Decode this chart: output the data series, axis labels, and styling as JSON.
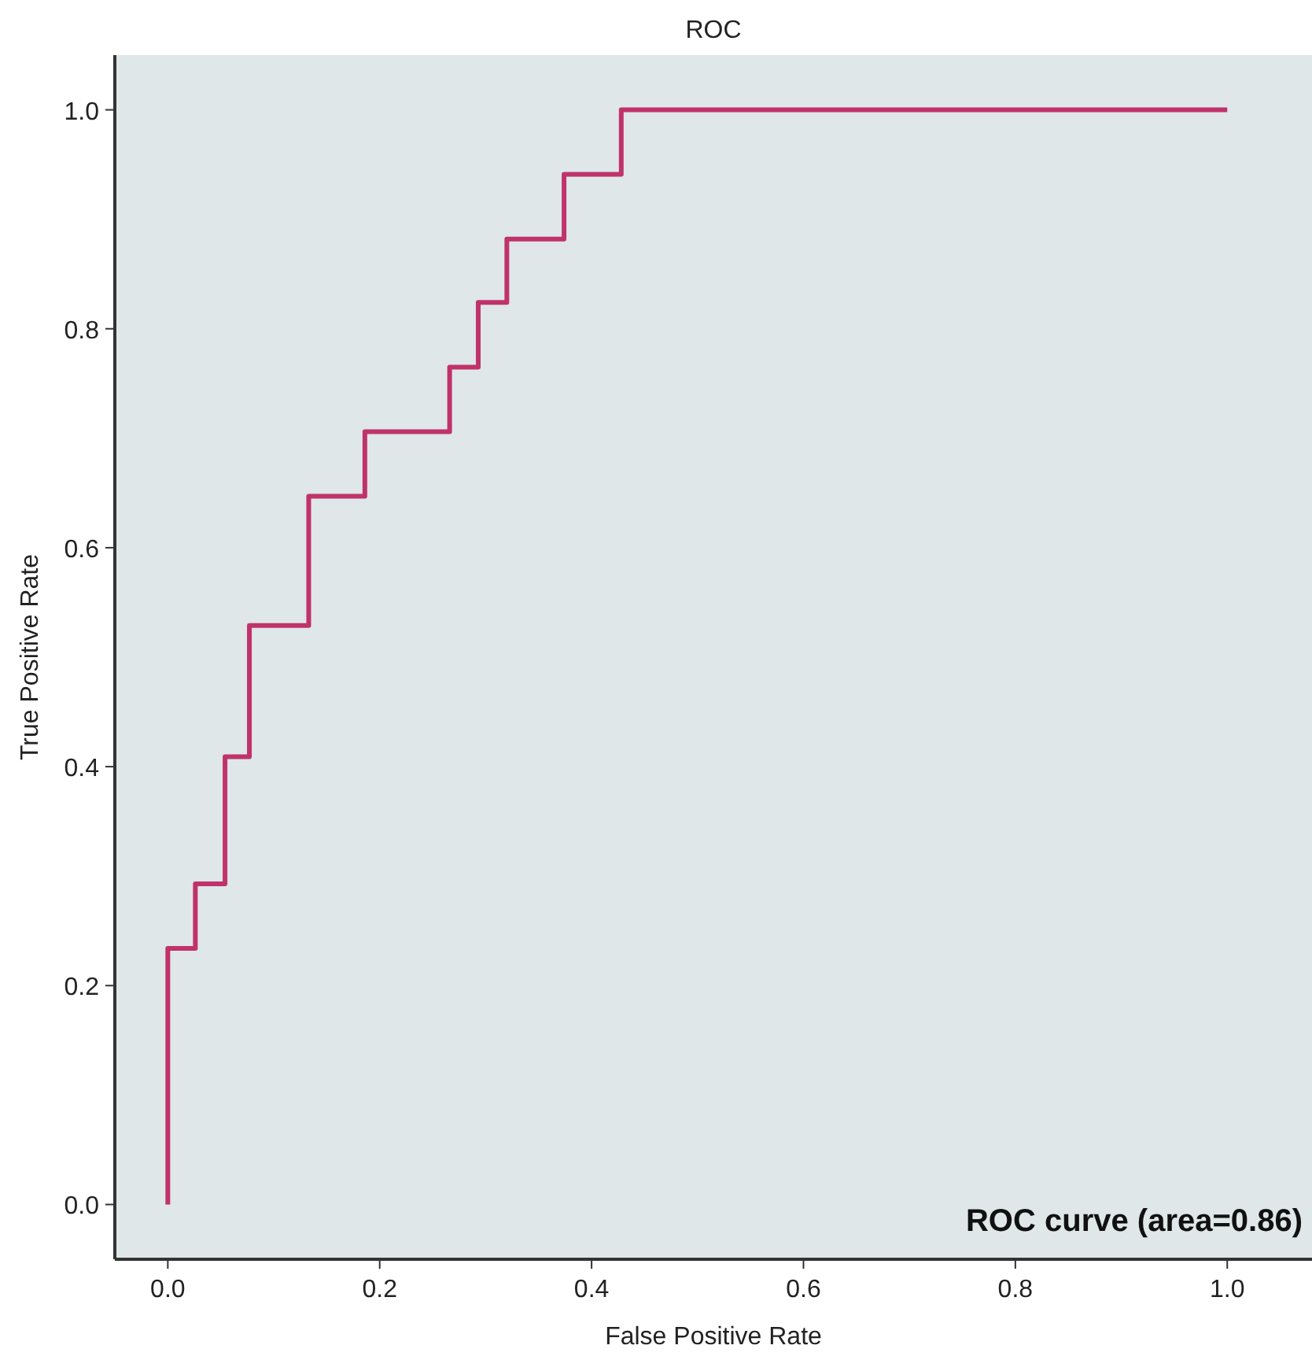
{
  "chart_data": {
    "type": "step",
    "title": "ROC",
    "xlabel": "False Positive Rate",
    "ylabel": "True Positive Rate",
    "xlim": [
      -0.05,
      1.08
    ],
    "ylim": [
      -0.05,
      1.05
    ],
    "xticks": [
      {
        "value": 0,
        "label": "0.0"
      },
      {
        "value": 0.2,
        "label": "0.2"
      },
      {
        "value": 0.4,
        "label": "0.4"
      },
      {
        "value": 0.6,
        "label": "0.6"
      },
      {
        "value": 0.8,
        "label": "0.8"
      },
      {
        "value": 1,
        "label": "1.0"
      }
    ],
    "yticks": [
      {
        "value": 0,
        "label": "0.0"
      },
      {
        "value": 0.2,
        "label": "0.2"
      },
      {
        "value": 0.4,
        "label": "0.4"
      },
      {
        "value": 0.6,
        "label": "0.6"
      },
      {
        "value": 0.8,
        "label": "0.8"
      },
      {
        "value": 1,
        "label": "1.0"
      }
    ],
    "x": [
      0,
      0,
      0.026,
      0.054,
      0.077,
      0.133,
      0.186,
      0.266,
      0.293,
      0.32,
      0.374,
      0.428,
      1.0
    ],
    "series": [
      {
        "color": "#c0336a",
        "values": [
          0,
          0.234,
          0.293,
          0.409,
          0.529,
          0.647,
          0.706,
          0.765,
          0.824,
          0.882,
          0.941,
          1.0,
          1.0
        ]
      }
    ],
    "annotations": [
      "ROC curve (area=0.86)"
    ]
  }
}
